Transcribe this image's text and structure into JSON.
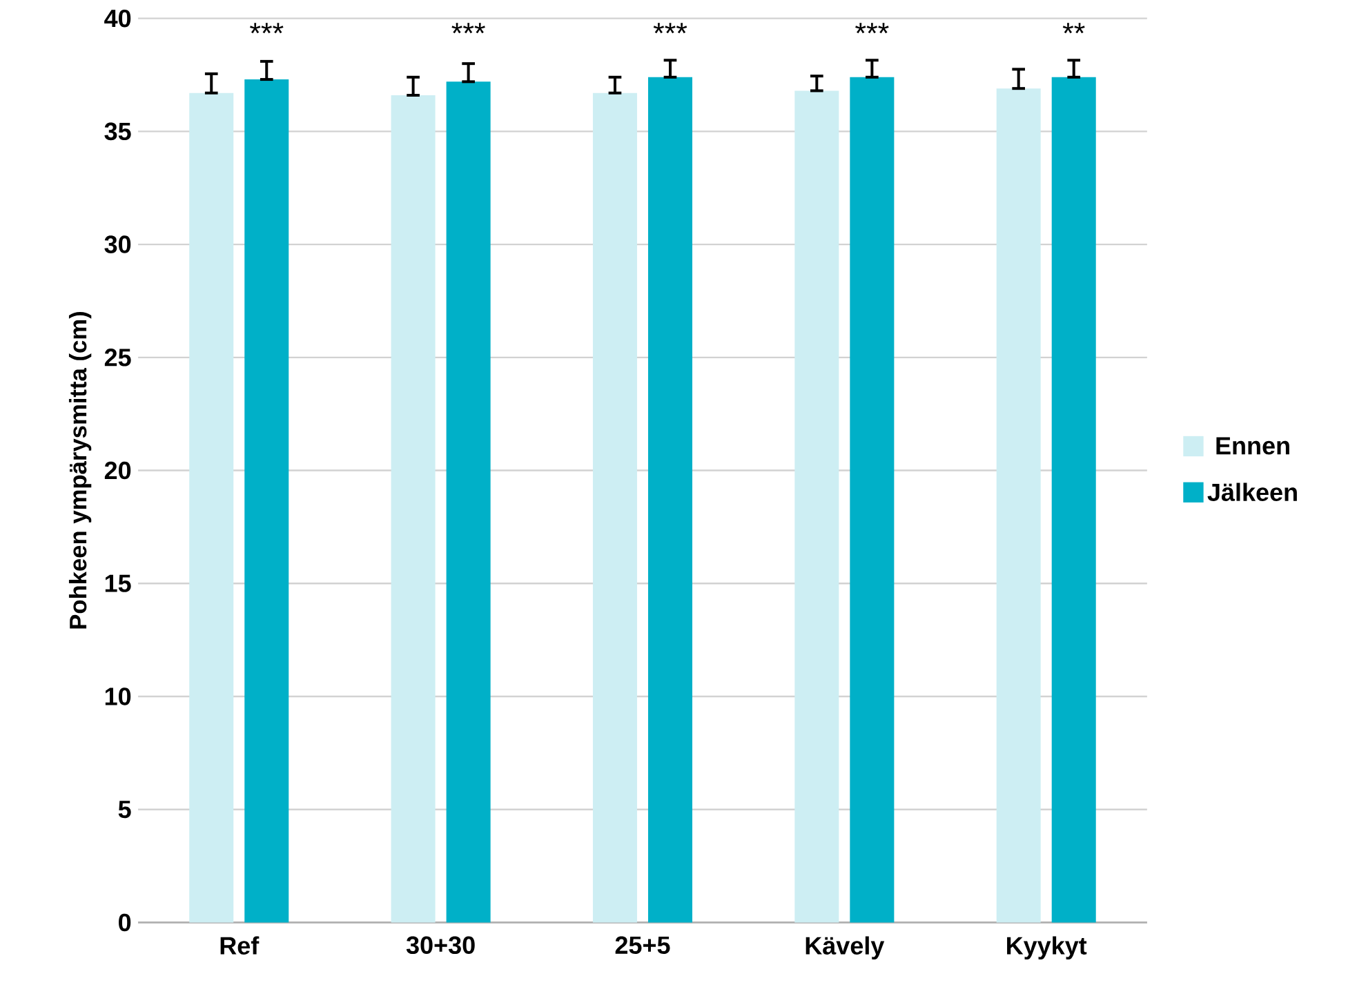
{
  "chart_data": {
    "type": "bar",
    "ylabel": "Pohkeen ympärysmitta (cm)",
    "categories": [
      "Ref",
      "30+30",
      "25+5",
      "Kävely",
      "Kyykyt"
    ],
    "series": [
      {
        "name": "Ennen",
        "color": "#cdeef3",
        "values": [
          36.7,
          36.6,
          36.7,
          36.8,
          36.9
        ],
        "errors": [
          [
            36.7,
            37.55
          ],
          [
            36.6,
            37.4
          ],
          [
            36.7,
            37.4
          ],
          [
            36.8,
            37.45
          ],
          [
            36.9,
            37.75
          ]
        ]
      },
      {
        "name": "Jälkeen",
        "color": "#00b0c8",
        "values": [
          37.3,
          37.2,
          37.4,
          37.4,
          37.4
        ],
        "errors": [
          [
            37.3,
            38.1
          ],
          [
            37.2,
            38.0
          ],
          [
            37.4,
            38.15
          ],
          [
            37.4,
            38.15
          ],
          [
            37.4,
            38.15
          ]
        ]
      }
    ],
    "ylim": [
      0,
      40
    ],
    "yticks": [
      0,
      5,
      10,
      15,
      20,
      25,
      30,
      35,
      40
    ],
    "grid": "y",
    "legend": "right",
    "annotations": [
      "***",
      "***",
      "***",
      "***",
      "**"
    ]
  }
}
